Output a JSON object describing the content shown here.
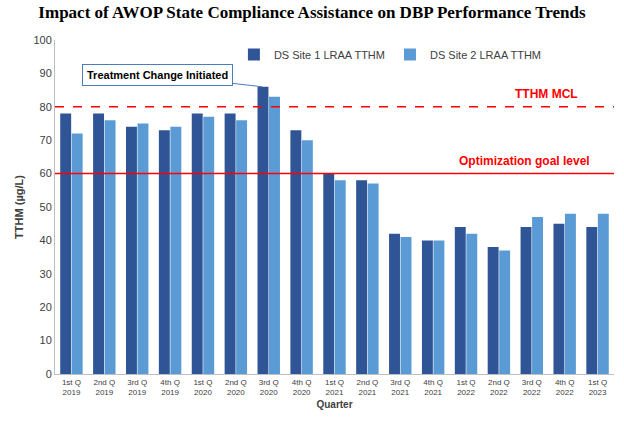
{
  "chart_data": {
    "type": "bar",
    "title": "Impact of AWOP State Compliance Assistance on DBP Performance Trends",
    "x_label": "Quarter",
    "y_label": "TTHM (µg/L)",
    "categories": [
      "1st Q 2019",
      "2nd Q 2019",
      "3rd Q 2019",
      "4th Q 2019",
      "1st Q 2020",
      "2nd Q 2020",
      "3rd Q 2020",
      "4th Q 2020",
      "1st Q 2021",
      "2nd Q 2021",
      "3rd Q 2021",
      "4th Q 2021",
      "1st Q 2022",
      "2nd Q 2022",
      "3rd Q 2022",
      "4th Q 2022",
      "1st Q 2023"
    ],
    "series": [
      {
        "name": "DS Site 1 LRAA TTHM",
        "color": "#2f5597",
        "values": [
          78,
          78,
          74,
          73,
          78,
          78,
          86,
          73,
          60,
          58,
          42,
          40,
          44,
          38,
          44,
          45,
          44
        ]
      },
      {
        "name": "DS Site 2 LRAA TTHM",
        "color": "#5b9bd5",
        "values": [
          72,
          76,
          75,
          74,
          77,
          76,
          83,
          70,
          58,
          57,
          41,
          40,
          42,
          37,
          47,
          48,
          48
        ]
      }
    ],
    "ylim": [
      0,
      100
    ],
    "yticks": [
      0,
      10,
      20,
      30,
      40,
      50,
      60,
      70,
      80,
      90,
      100
    ],
    "grid": false,
    "legend": "top",
    "reference_lines": [
      {
        "value": 80,
        "label": "TTHM MCL",
        "color": "#ff0000",
        "line_style": "dashed"
      },
      {
        "value": 60,
        "label": "Optimization goal level",
        "color": "#ff0000",
        "line_style": "solid"
      }
    ],
    "annotations": [
      {
        "text": "Treatment Change Initiated",
        "category": "3rd Q 2020"
      }
    ]
  }
}
